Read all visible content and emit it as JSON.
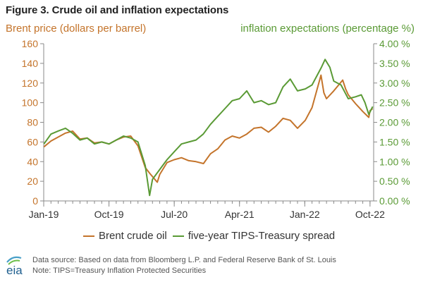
{
  "title": "Figure 3. Crude oil and inflation expectations",
  "left_axis_label": "Brent price (dollars per barrel)",
  "right_axis_label": "inflation expectations (percentage %)",
  "source_line": "Data source: Based on data from Bloomberg L.P. and Federal Reserve Bank of St. Louis",
  "note_line": "Note: TIPS=Treasury Inflation Protected Securities",
  "logo_text": "eia",
  "colors": {
    "brent": "#c4742b",
    "tips": "#5a9a35",
    "axis": "#8a8a8a"
  },
  "chart_data": {
    "type": "line",
    "x_tick_labels": [
      "Jan-19",
      "Oct-19",
      "Jul-20",
      "Apr-21",
      "Jan-22",
      "Oct-22"
    ],
    "x_tick_months": [
      0,
      9,
      18,
      27,
      36,
      45
    ],
    "left_axis": {
      "min": 0,
      "max": 160,
      "ticks": [
        0,
        20,
        40,
        60,
        80,
        100,
        120,
        140,
        160
      ],
      "tick_labels": [
        "0",
        "20",
        "40",
        "60",
        "80",
        "100",
        "120",
        "140",
        "160"
      ]
    },
    "right_axis": {
      "min": 0,
      "max": 4,
      "ticks": [
        0,
        0.5,
        1,
        1.5,
        2,
        2.5,
        3,
        3.5,
        4
      ],
      "tick_labels": [
        "0.00 %",
        "0.50 %",
        "1.00 %",
        "1.50 %",
        "2.00 %",
        "2.50 %",
        "3.00 %",
        "3.50 %",
        "4.00 %"
      ]
    },
    "grid": false,
    "legend_position": "bottom",
    "series": [
      {
        "name": "Brent crude oil",
        "axis": "left",
        "color": "#c4742b",
        "points": [
          [
            "2019-01-02",
            55
          ],
          [
            "2019-02-01",
            61
          ],
          [
            "2019-03-01",
            65
          ],
          [
            "2019-04-01",
            69
          ],
          [
            "2019-05-01",
            71
          ],
          [
            "2019-06-01",
            63
          ],
          [
            "2019-07-01",
            64
          ],
          [
            "2019-08-01",
            59
          ],
          [
            "2019-09-01",
            60
          ],
          [
            "2019-10-01",
            58
          ],
          [
            "2019-11-01",
            62
          ],
          [
            "2019-12-01",
            65
          ],
          [
            "2020-01-01",
            66
          ],
          [
            "2020-02-01",
            56
          ],
          [
            "2020-03-01",
            34
          ],
          [
            "2020-03-20",
            28
          ],
          [
            "2020-04-21",
            19
          ],
          [
            "2020-05-01",
            27
          ],
          [
            "2020-06-01",
            39
          ],
          [
            "2020-07-01",
            42
          ],
          [
            "2020-08-01",
            44
          ],
          [
            "2020-09-01",
            41
          ],
          [
            "2020-10-01",
            40
          ],
          [
            "2020-11-02",
            38
          ],
          [
            "2020-12-01",
            48
          ],
          [
            "2021-01-01",
            53
          ],
          [
            "2021-02-01",
            62
          ],
          [
            "2021-03-01",
            66
          ],
          [
            "2021-04-01",
            64
          ],
          [
            "2021-05-01",
            68
          ],
          [
            "2021-06-01",
            74
          ],
          [
            "2021-07-01",
            75
          ],
          [
            "2021-08-01",
            70
          ],
          [
            "2021-09-01",
            76
          ],
          [
            "2021-10-01",
            84
          ],
          [
            "2021-11-01",
            82
          ],
          [
            "2021-12-01",
            74
          ],
          [
            "2022-01-03",
            82
          ],
          [
            "2022-02-01",
            95
          ],
          [
            "2022-03-08",
            128
          ],
          [
            "2022-03-20",
            110
          ],
          [
            "2022-04-01",
            104
          ],
          [
            "2022-05-01",
            112
          ],
          [
            "2022-06-08",
            123
          ],
          [
            "2022-06-20",
            114
          ],
          [
            "2022-07-01",
            108
          ],
          [
            "2022-08-01",
            99
          ],
          [
            "2022-09-01",
            91
          ],
          [
            "2022-09-26",
            85
          ],
          [
            "2022-10-01",
            92
          ],
          [
            "2022-10-12",
            94
          ]
        ]
      },
      {
        "name": "five-year TIPS-Treasury spread",
        "axis": "right",
        "color": "#5a9a35",
        "points": [
          [
            "2019-01-02",
            1.45
          ],
          [
            "2019-02-01",
            1.7
          ],
          [
            "2019-03-01",
            1.78
          ],
          [
            "2019-04-01",
            1.85
          ],
          [
            "2019-05-01",
            1.72
          ],
          [
            "2019-06-01",
            1.55
          ],
          [
            "2019-07-01",
            1.6
          ],
          [
            "2019-08-01",
            1.45
          ],
          [
            "2019-09-01",
            1.5
          ],
          [
            "2019-10-01",
            1.45
          ],
          [
            "2019-11-01",
            1.55
          ],
          [
            "2019-12-01",
            1.65
          ],
          [
            "2020-01-01",
            1.6
          ],
          [
            "2020-02-01",
            1.5
          ],
          [
            "2020-03-01",
            0.9
          ],
          [
            "2020-03-19",
            0.14
          ],
          [
            "2020-04-01",
            0.55
          ],
          [
            "2020-05-01",
            0.8
          ],
          [
            "2020-06-01",
            1.05
          ],
          [
            "2020-07-01",
            1.25
          ],
          [
            "2020-08-01",
            1.45
          ],
          [
            "2020-09-01",
            1.5
          ],
          [
            "2020-10-01",
            1.55
          ],
          [
            "2020-11-01",
            1.7
          ],
          [
            "2020-12-01",
            1.95
          ],
          [
            "2021-01-01",
            2.15
          ],
          [
            "2021-02-01",
            2.35
          ],
          [
            "2021-03-01",
            2.55
          ],
          [
            "2021-04-01",
            2.6
          ],
          [
            "2021-05-01",
            2.8
          ],
          [
            "2021-06-01",
            2.5
          ],
          [
            "2021-07-01",
            2.55
          ],
          [
            "2021-08-01",
            2.45
          ],
          [
            "2021-09-01",
            2.5
          ],
          [
            "2021-10-01",
            2.9
          ],
          [
            "2021-11-01",
            3.1
          ],
          [
            "2021-12-01",
            2.8
          ],
          [
            "2022-01-03",
            2.85
          ],
          [
            "2022-02-01",
            2.95
          ],
          [
            "2022-03-10",
            3.4
          ],
          [
            "2022-03-25",
            3.6
          ],
          [
            "2022-04-15",
            3.4
          ],
          [
            "2022-05-01",
            3.05
          ],
          [
            "2022-06-01",
            2.95
          ],
          [
            "2022-07-01",
            2.6
          ],
          [
            "2022-08-01",
            2.65
          ],
          [
            "2022-08-25",
            2.7
          ],
          [
            "2022-09-10",
            2.5
          ],
          [
            "2022-09-26",
            2.2
          ],
          [
            "2022-10-12",
            2.4
          ]
        ]
      }
    ]
  }
}
